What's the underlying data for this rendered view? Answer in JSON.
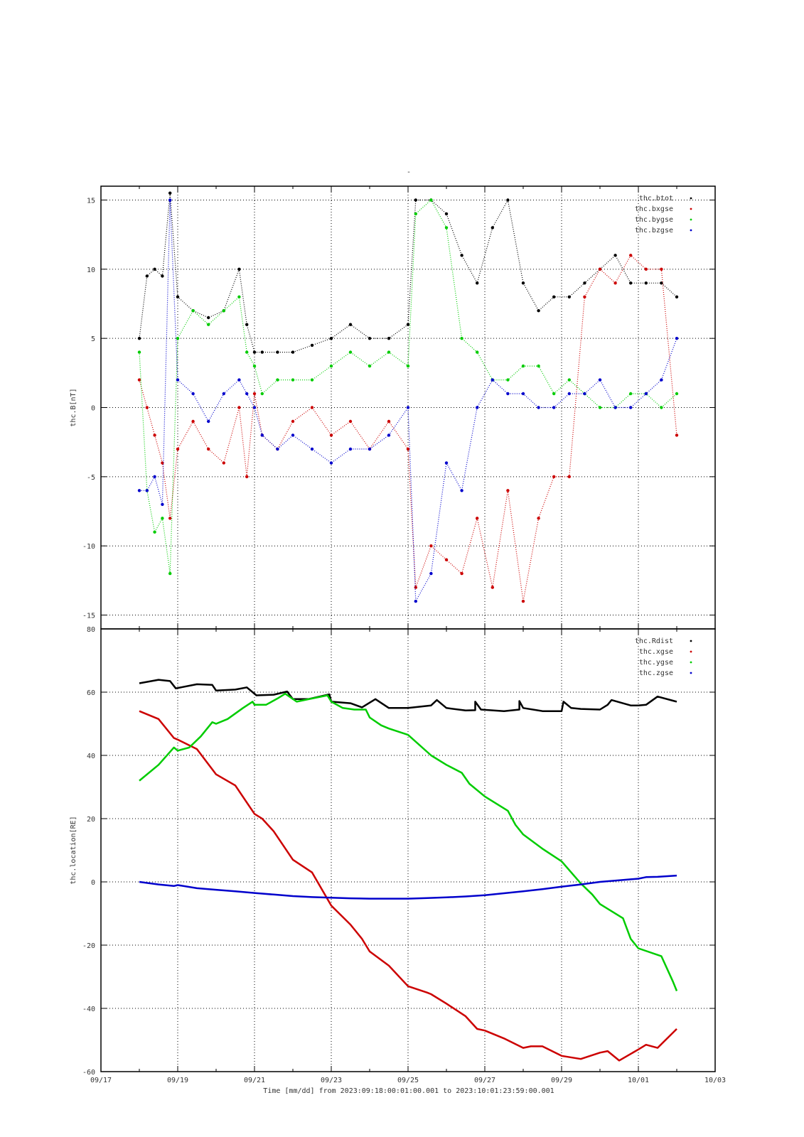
{
  "header_mark": "-",
  "time_axis": {
    "ticks": [
      "09/17",
      "09/19",
      "09/21",
      "09/23",
      "09/25",
      "09/27",
      "09/29",
      "10/01",
      "10/03"
    ],
    "xlabel": "Time [mm/dd]  from 2023:09:18:00:01:00.001  to  2023:10:01:23:59:00.001"
  },
  "chart_data": [
    {
      "type": "scatter",
      "ylabel": "thc.B[nT]",
      "xlim": [
        0,
        16
      ],
      "ylim": [
        -16,
        16
      ],
      "yticks": [
        {
          "v": 15,
          "label": "15"
        },
        {
          "v": 10,
          "label": "10"
        },
        {
          "v": 5,
          "label": "5"
        },
        {
          "v": 0,
          "label": "0"
        },
        {
          "v": -5,
          "label": "-5"
        },
        {
          "v": -10,
          "label": "-10"
        },
        {
          "v": -15,
          "label": "-15"
        }
      ],
      "grid": true,
      "legend_position": "top-right",
      "series": [
        {
          "name": "thc.btot",
          "color": "#000000",
          "x": [
            1.0,
            1.2,
            1.4,
            1.6,
            1.8,
            2.0,
            2.4,
            2.8,
            3.2,
            3.6,
            3.8,
            4.0,
            4.2,
            4.6,
            5.0,
            5.5,
            6.0,
            6.5,
            7.0,
            7.5,
            8.0,
            8.2,
            8.6,
            9.0,
            9.4,
            9.8,
            10.2,
            10.6,
            11.0,
            11.4,
            11.8,
            12.2,
            12.6,
            13.0,
            13.4,
            13.8,
            14.2,
            14.6,
            15.0
          ],
          "y": [
            5,
            9.5,
            10,
            9.5,
            15.5,
            8,
            7,
            6.5,
            7,
            10,
            6,
            4,
            4,
            4,
            4,
            4.5,
            5,
            6,
            5,
            5,
            6,
            15,
            15,
            14,
            11,
            9,
            13,
            15,
            9,
            7,
            8,
            8,
            9,
            10,
            11,
            9,
            9,
            9,
            8
          ]
        },
        {
          "name": "thc.bxgse",
          "color": "#cc0000",
          "x": [
            1.0,
            1.2,
            1.4,
            1.6,
            1.8,
            2.0,
            2.4,
            2.8,
            3.2,
            3.6,
            3.8,
            4.0,
            4.2,
            4.6,
            5.0,
            5.5,
            6.0,
            6.5,
            7.0,
            7.5,
            8.0,
            8.2,
            8.6,
            9.0,
            9.4,
            9.8,
            10.2,
            10.6,
            11.0,
            11.4,
            11.8,
            12.2,
            12.6,
            13.0,
            13.4,
            13.8,
            14.2,
            14.6,
            15.0
          ],
          "y": [
            2,
            0,
            -2,
            -4,
            -8,
            -3,
            -1,
            -3,
            -4,
            0,
            -5,
            1,
            -2,
            -3,
            -1,
            0,
            -2,
            -1,
            -3,
            -1,
            -3,
            -13,
            -10,
            -11,
            -12,
            -8,
            -13,
            -6,
            -14,
            -8,
            -5,
            -5,
            8,
            10,
            9,
            11,
            10,
            10,
            -2
          ]
        },
        {
          "name": "thc.bygse",
          "color": "#00cc00",
          "x": [
            1.0,
            1.2,
            1.4,
            1.6,
            1.8,
            2.0,
            2.4,
            2.8,
            3.2,
            3.6,
            3.8,
            4.0,
            4.2,
            4.6,
            5.0,
            5.5,
            6.0,
            6.5,
            7.0,
            7.5,
            8.0,
            8.2,
            8.6,
            9.0,
            9.4,
            9.8,
            10.2,
            10.6,
            11.0,
            11.4,
            11.8,
            12.2,
            12.6,
            13.0,
            13.4,
            13.8,
            14.2,
            14.6,
            15.0
          ],
          "y": [
            4,
            -6,
            -9,
            -8,
            -12,
            5,
            7,
            6,
            7,
            8,
            4,
            3,
            1,
            2,
            2,
            2,
            3,
            4,
            3,
            4,
            3,
            14,
            15,
            13,
            5,
            4,
            2,
            2,
            3,
            3,
            1,
            2,
            1,
            0,
            0,
            1,
            1,
            0,
            1
          ]
        },
        {
          "name": "thc.bzgse",
          "color": "#0000cc",
          "x": [
            1.0,
            1.2,
            1.4,
            1.6,
            1.8,
            2.0,
            2.4,
            2.8,
            3.2,
            3.6,
            3.8,
            4.0,
            4.2,
            4.6,
            5.0,
            5.5,
            6.0,
            6.5,
            7.0,
            7.5,
            8.0,
            8.2,
            8.6,
            9.0,
            9.4,
            9.8,
            10.2,
            10.6,
            11.0,
            11.4,
            11.8,
            12.2,
            12.6,
            13.0,
            13.4,
            13.8,
            14.2,
            14.6,
            15.0
          ],
          "y": [
            -6,
            -6,
            -5,
            -7,
            15,
            2,
            1,
            -1,
            1,
            2,
            1,
            0,
            -2,
            -3,
            -2,
            -3,
            -4,
            -3,
            -3,
            -2,
            0,
            -14,
            -12,
            -4,
            -6,
            0,
            2,
            1,
            1,
            0,
            0,
            1,
            1,
            2,
            0,
            0,
            1,
            2,
            5
          ]
        }
      ]
    },
    {
      "type": "line",
      "ylabel": "thc.location[RE]",
      "xlim": [
        0,
        16
      ],
      "ylim": [
        -60,
        80
      ],
      "yticks": [
        {
          "v": 80,
          "label": "80"
        },
        {
          "v": 60,
          "label": "60"
        },
        {
          "v": 40,
          "label": "40"
        },
        {
          "v": 20,
          "label": "20"
        },
        {
          "v": 0,
          "label": "0"
        },
        {
          "v": -20,
          "label": "-20"
        },
        {
          "v": -40,
          "label": "-40"
        },
        {
          "v": -60,
          "label": "-60"
        }
      ],
      "grid": true,
      "legend_position": "top-right",
      "series": [
        {
          "name": "thc.Rdist",
          "color": "#000000",
          "x": [
            1.0,
            1.5,
            1.8,
            1.95,
            2.5,
            2.9,
            3.0,
            3.5,
            3.8,
            4.05,
            4.5,
            4.85,
            5.0,
            5.4,
            5.95,
            6.0,
            6.5,
            6.8,
            7.15,
            7.5,
            8.0,
            8.6,
            8.6,
            8.75,
            9.0,
            9.5,
            9.75,
            9.75,
            9.9,
            10.5,
            10.9,
            10.9,
            11.0,
            11.5,
            12.0,
            12.05,
            12.25,
            12.5,
            13.0,
            13.2,
            13.3,
            13.8,
            14.0,
            14.2,
            14.5,
            14.9,
            15.0
          ],
          "y": [
            62.8,
            63.9,
            63.5,
            61.2,
            62.5,
            62.3,
            60.5,
            60.8,
            61.5,
            59.0,
            59.2,
            60.2,
            57.8,
            57.8,
            59.3,
            57.0,
            56.5,
            55.2,
            57.8,
            55.0,
            55.0,
            55.8,
            55.8,
            57.5,
            55.0,
            54.2,
            54.3,
            57.0,
            54.5,
            54.0,
            54.5,
            57.2,
            55.0,
            54.0,
            54.0,
            57.0,
            55.0,
            54.7,
            54.5,
            56.0,
            57.5,
            55.8,
            55.8,
            56.0,
            58.6,
            57.3,
            57.0
          ]
        },
        {
          "name": "thc.xgse",
          "color": "#cc0000",
          "x": [
            1.0,
            1.5,
            1.9,
            2.0,
            2.5,
            3.0,
            3.5,
            4.0,
            4.2,
            4.5,
            5.0,
            5.5,
            6.0,
            6.5,
            6.8,
            7.0,
            7.5,
            8.0,
            8.5,
            8.6,
            9.0,
            9.5,
            9.8,
            10.0,
            10.5,
            11.0,
            11.2,
            11.5,
            12.0,
            12.5,
            13.0,
            13.2,
            13.5,
            14.0,
            14.2,
            14.5,
            15.0
          ],
          "y": [
            54.0,
            51.5,
            45.5,
            45.0,
            42.0,
            34.0,
            30.5,
            21.5,
            20.0,
            16.0,
            7.0,
            3.0,
            -7.5,
            -13.5,
            -18.0,
            -22.0,
            -26.5,
            -33.0,
            -35.0,
            -35.5,
            -38.5,
            -42.5,
            -46.5,
            -47.0,
            -49.5,
            -52.5,
            -52.0,
            -52.0,
            -55.0,
            -56.0,
            -54.0,
            -53.5,
            -56.5,
            -53.0,
            -51.5,
            -52.5,
            -46.5
          ]
        },
        {
          "name": "thc.ygse",
          "color": "#00cc00",
          "x": [
            1.0,
            1.5,
            1.9,
            2.0,
            2.3,
            2.6,
            2.9,
            3.0,
            3.3,
            3.7,
            3.95,
            4.0,
            4.3,
            4.6,
            4.8,
            5.1,
            5.3,
            5.5,
            5.9,
            6.0,
            6.3,
            6.6,
            6.9,
            7.0,
            7.3,
            7.5,
            8.0,
            8.6,
            9.0,
            9.4,
            9.6,
            10.0,
            10.6,
            10.8,
            11.0,
            11.5,
            12.0,
            12.5,
            12.8,
            13.0,
            13.6,
            13.8,
            14.0,
            14.6,
            14.9,
            15.0
          ],
          "y": [
            32.0,
            37.0,
            42.5,
            41.5,
            42.5,
            46.0,
            50.5,
            50.0,
            51.5,
            55.0,
            57.0,
            56.0,
            56.0,
            58.0,
            59.5,
            57.0,
            57.5,
            58.0,
            59.0,
            57.0,
            55.0,
            54.5,
            54.5,
            52.0,
            49.5,
            48.5,
            46.5,
            40.0,
            37.0,
            34.5,
            31.0,
            27.0,
            22.5,
            18.0,
            15.0,
            10.5,
            6.5,
            -0.5,
            -4.0,
            -7.0,
            -11.5,
            -18.0,
            -21.0,
            -23.5,
            -31.5,
            -34.5
          ]
        },
        {
          "name": "thc.zgse",
          "color": "#0000cc",
          "x": [
            1.0,
            1.5,
            1.9,
            2.0,
            2.5,
            3.0,
            3.5,
            4.0,
            4.2,
            4.5,
            5.0,
            5.5,
            6.0,
            6.5,
            7.0,
            7.5,
            8.0,
            8.5,
            9.0,
            9.5,
            10.0,
            10.5,
            11.0,
            11.5,
            12.0,
            12.5,
            13.0,
            13.5,
            14.0,
            14.2,
            14.5,
            15.0
          ],
          "y": [
            0.0,
            -0.8,
            -1.3,
            -1.0,
            -2.0,
            -2.5,
            -3.0,
            -3.5,
            -3.7,
            -4.0,
            -4.5,
            -4.8,
            -5.0,
            -5.2,
            -5.3,
            -5.3,
            -5.3,
            -5.1,
            -4.9,
            -4.6,
            -4.2,
            -3.6,
            -3.0,
            -2.3,
            -1.5,
            -0.8,
            0.0,
            0.5,
            1.0,
            1.5,
            1.6,
            2.0
          ]
        }
      ]
    }
  ]
}
